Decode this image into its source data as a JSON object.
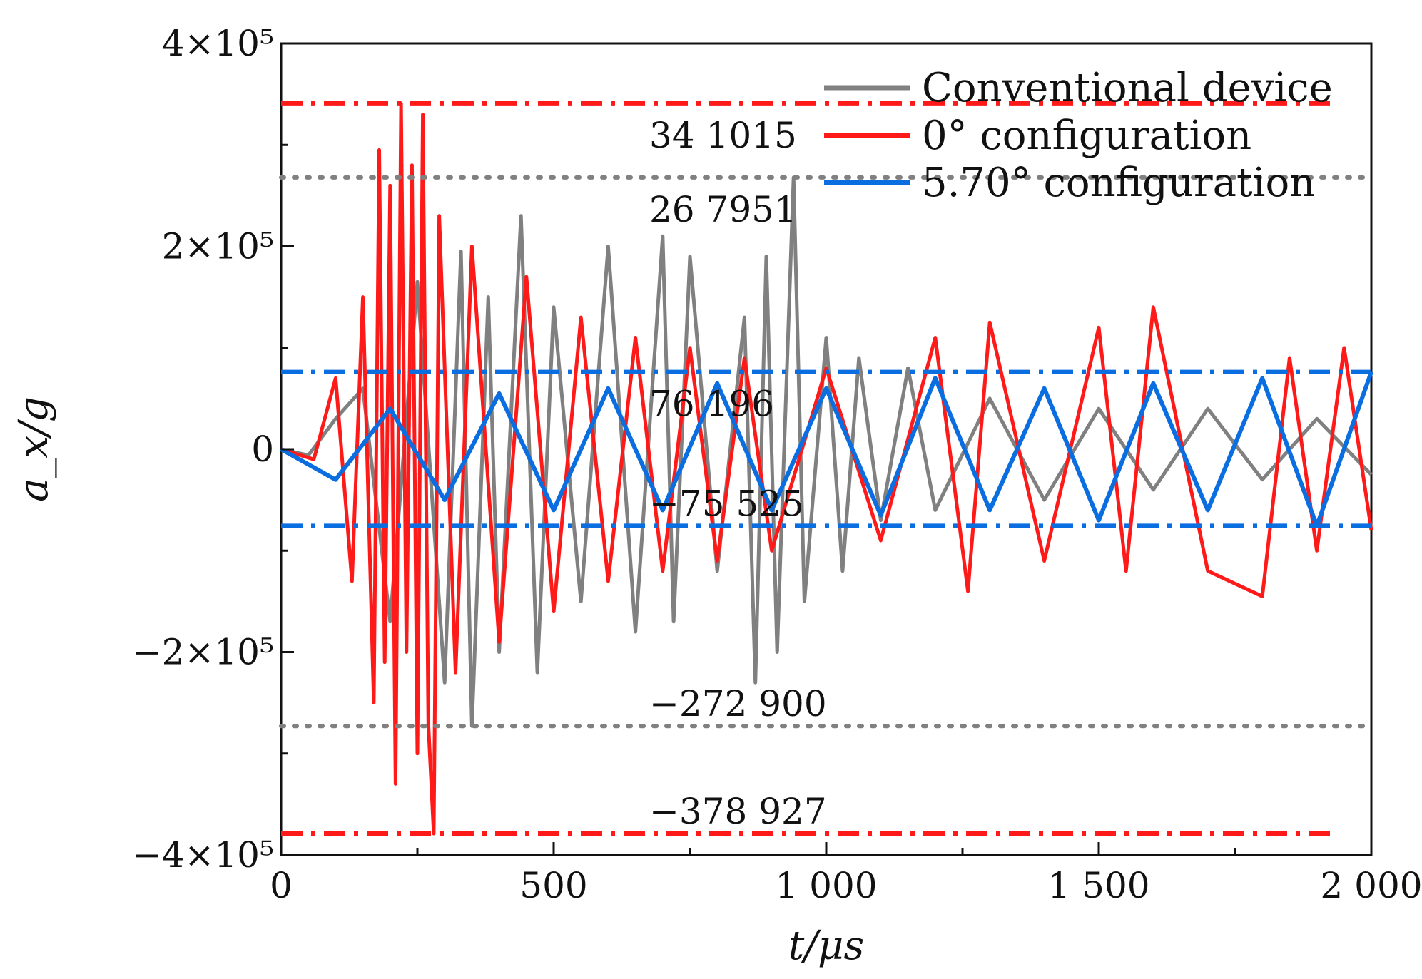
{
  "chart_data": {
    "type": "line",
    "xlabel": "t/μs",
    "ylabel": "a_x/g",
    "xlim": [
      0,
      2000
    ],
    "ylim": [
      -400000,
      400000
    ],
    "x_ticks": [
      {
        "value": 0,
        "label": "0"
      },
      {
        "value": 500,
        "label": "500"
      },
      {
        "value": 1000,
        "label": "1 000"
      },
      {
        "value": 1500,
        "label": "1 500"
      },
      {
        "value": 2000,
        "label": "2 000"
      }
    ],
    "y_ticks": [
      {
        "value": 400000,
        "label": "4×10⁵"
      },
      {
        "value": 200000,
        "label": "2×10⁵"
      },
      {
        "value": 0,
        "label": "0"
      },
      {
        "value": -200000,
        "label": "−2×10⁵"
      },
      {
        "value": -400000,
        "label": "−4×10⁵"
      }
    ],
    "grid": false,
    "legend": "top-right",
    "series": [
      {
        "name": "Conventional device",
        "color": "#808080",
        "points": [
          [
            0,
            0
          ],
          [
            50,
            -6000
          ],
          [
            100,
            30000
          ],
          [
            150,
            60000
          ],
          [
            200,
            -170000
          ],
          [
            250,
            165000
          ],
          [
            300,
            -230000
          ],
          [
            330,
            195000
          ],
          [
            350,
            -272900
          ],
          [
            380,
            150000
          ],
          [
            400,
            -200000
          ],
          [
            440,
            230000
          ],
          [
            470,
            -220000
          ],
          [
            500,
            140000
          ],
          [
            550,
            -150000
          ],
          [
            600,
            200000
          ],
          [
            650,
            -180000
          ],
          [
            700,
            210000
          ],
          [
            720,
            -170000
          ],
          [
            750,
            190000
          ],
          [
            800,
            -120000
          ],
          [
            850,
            130000
          ],
          [
            870,
            -230000
          ],
          [
            890,
            190000
          ],
          [
            910,
            -200000
          ],
          [
            940,
            267951
          ],
          [
            960,
            -150000
          ],
          [
            1000,
            110000
          ],
          [
            1030,
            -120000
          ],
          [
            1060,
            90000
          ],
          [
            1100,
            -70000
          ],
          [
            1150,
            80000
          ],
          [
            1200,
            -60000
          ],
          [
            1300,
            50000
          ],
          [
            1400,
            -50000
          ],
          [
            1500,
            40000
          ],
          [
            1600,
            -40000
          ],
          [
            1700,
            40000
          ],
          [
            1800,
            -30000
          ],
          [
            1900,
            30000
          ],
          [
            2000,
            -25000
          ]
        ]
      },
      {
        "name": "0° configuration",
        "color": "#ff1a1a",
        "points": [
          [
            0,
            0
          ],
          [
            60,
            -10000
          ],
          [
            100,
            70000
          ],
          [
            130,
            -130000
          ],
          [
            150,
            150000
          ],
          [
            170,
            -250000
          ],
          [
            180,
            295000
          ],
          [
            190,
            -210000
          ],
          [
            200,
            260000
          ],
          [
            210,
            -330000
          ],
          [
            220,
            341015
          ],
          [
            230,
            -200000
          ],
          [
            240,
            280000
          ],
          [
            250,
            -300000
          ],
          [
            260,
            330000
          ],
          [
            270,
            -270000
          ],
          [
            280,
            -378927
          ],
          [
            290,
            230000
          ],
          [
            320,
            -220000
          ],
          [
            350,
            200000
          ],
          [
            400,
            -190000
          ],
          [
            450,
            170000
          ],
          [
            500,
            -160000
          ],
          [
            550,
            130000
          ],
          [
            600,
            -130000
          ],
          [
            650,
            110000
          ],
          [
            700,
            -120000
          ],
          [
            750,
            100000
          ],
          [
            800,
            -110000
          ],
          [
            850,
            90000
          ],
          [
            900,
            -100000
          ],
          [
            1000,
            80000
          ],
          [
            1100,
            -90000
          ],
          [
            1200,
            110000
          ],
          [
            1260,
            -140000
          ],
          [
            1300,
            125000
          ],
          [
            1400,
            -110000
          ],
          [
            1500,
            120000
          ],
          [
            1550,
            -120000
          ],
          [
            1600,
            140000
          ],
          [
            1700,
            -120000
          ],
          [
            1800,
            -145000
          ],
          [
            1850,
            90000
          ],
          [
            1900,
            -100000
          ],
          [
            1950,
            100000
          ],
          [
            2000,
            -80000
          ]
        ]
      },
      {
        "name": "5.70° configuration",
        "color": "#0a6ee0",
        "points": [
          [
            0,
            0
          ],
          [
            100,
            -30000
          ],
          [
            200,
            40000
          ],
          [
            300,
            -50000
          ],
          [
            400,
            55000
          ],
          [
            500,
            -60000
          ],
          [
            600,
            60000
          ],
          [
            700,
            -60000
          ],
          [
            800,
            65000
          ],
          [
            900,
            -60000
          ],
          [
            1000,
            60000
          ],
          [
            1100,
            -65000
          ],
          [
            1200,
            70000
          ],
          [
            1300,
            -60000
          ],
          [
            1400,
            60000
          ],
          [
            1500,
            -70000
          ],
          [
            1600,
            65000
          ],
          [
            1700,
            -60000
          ],
          [
            1800,
            70000
          ],
          [
            1900,
            -75525
          ],
          [
            2000,
            76196
          ]
        ]
      }
    ],
    "reference_lines": [
      {
        "y": 341015,
        "color": "#ff1a1a",
        "style": "dashdot",
        "x_end": 1940,
        "label": "34 1015"
      },
      {
        "y": 267951,
        "color": "#808080",
        "style": "dot",
        "x_end": 2000,
        "label": "26 7951"
      },
      {
        "y": 76196,
        "color": "#0a6ee0",
        "style": "dashdot",
        "x_end": 2000,
        "label": "76 196"
      },
      {
        "y": -75525,
        "color": "#0a6ee0",
        "style": "dashdot",
        "x_end": 2000,
        "label": "−75 525"
      },
      {
        "y": -272900,
        "color": "#808080",
        "style": "dot",
        "x_end": 2000,
        "label": "−272 900"
      },
      {
        "y": -378927,
        "color": "#ff1a1a",
        "style": "dashdot",
        "x_end": 1940,
        "label": "−378 927"
      }
    ]
  }
}
